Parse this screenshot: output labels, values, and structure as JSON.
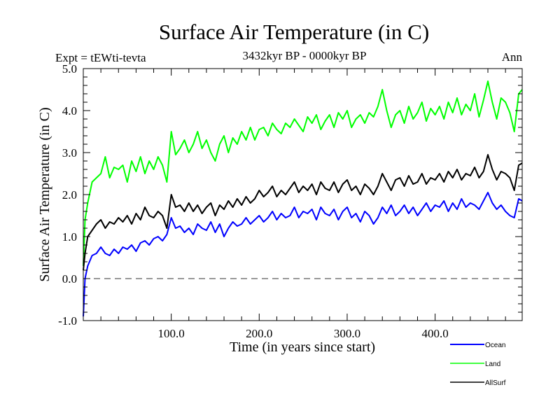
{
  "chart_data": {
    "type": "line",
    "title": "Surface Air Temperature (in C)",
    "subtitle": "3432kyr BP - 0000kyr BP",
    "left_annotation": "Expt = tEWti-tevta",
    "right_annotation": "Ann",
    "xlabel": "Time (in years since start)",
    "ylabel": "Surface Air Temperature (in C)",
    "xlim": [
      0,
      499
    ],
    "ylim": [
      -1.0,
      5.0
    ],
    "x_ticks": [
      100,
      200,
      300,
      400
    ],
    "x_tick_labels": [
      "100.0",
      "200.0",
      "300.0",
      "400.0"
    ],
    "y_ticks": [
      -1,
      0,
      1,
      2,
      3,
      4,
      5
    ],
    "y_tick_labels": [
      "-1.0",
      "0.0",
      "1.0",
      "2.0",
      "3.0",
      "4.0",
      "5.0"
    ],
    "reference_line": {
      "y": 0.0,
      "style": "dashed",
      "color": "#000000"
    },
    "grid": false,
    "legend_position": "bottom-right-outside",
    "x": [
      0,
      2,
      5,
      10,
      15,
      20,
      25,
      30,
      35,
      40,
      45,
      50,
      55,
      60,
      65,
      70,
      75,
      80,
      85,
      90,
      95,
      100,
      105,
      110,
      115,
      120,
      125,
      130,
      135,
      140,
      145,
      150,
      155,
      160,
      165,
      170,
      175,
      180,
      185,
      190,
      195,
      200,
      205,
      210,
      215,
      220,
      225,
      230,
      235,
      240,
      245,
      250,
      255,
      260,
      265,
      270,
      275,
      280,
      285,
      290,
      295,
      300,
      305,
      310,
      315,
      320,
      325,
      330,
      335,
      340,
      345,
      350,
      355,
      360,
      365,
      370,
      375,
      380,
      385,
      390,
      395,
      400,
      405,
      410,
      415,
      420,
      425,
      430,
      435,
      440,
      445,
      450,
      455,
      460,
      465,
      470,
      475,
      480,
      485,
      490,
      495,
      499
    ],
    "series": [
      {
        "name": "Ocean",
        "color": "#0000ff",
        "values": [
          -0.9,
          0.0,
          0.3,
          0.55,
          0.6,
          0.75,
          0.6,
          0.55,
          0.7,
          0.6,
          0.75,
          0.7,
          0.8,
          0.65,
          0.85,
          0.9,
          0.8,
          0.95,
          1.0,
          0.9,
          1.05,
          1.45,
          1.2,
          1.25,
          1.1,
          1.2,
          1.05,
          1.3,
          1.2,
          1.15,
          1.35,
          1.1,
          1.3,
          1.0,
          1.2,
          1.35,
          1.25,
          1.3,
          1.45,
          1.3,
          1.4,
          1.5,
          1.35,
          1.45,
          1.6,
          1.4,
          1.55,
          1.45,
          1.5,
          1.7,
          1.45,
          1.6,
          1.55,
          1.65,
          1.4,
          1.7,
          1.55,
          1.5,
          1.65,
          1.4,
          1.6,
          1.7,
          1.45,
          1.55,
          1.35,
          1.6,
          1.5,
          1.3,
          1.45,
          1.7,
          1.55,
          1.75,
          1.5,
          1.6,
          1.75,
          1.55,
          1.7,
          1.5,
          1.65,
          1.8,
          1.6,
          1.75,
          1.7,
          1.85,
          1.6,
          1.8,
          1.65,
          1.9,
          1.7,
          1.8,
          1.75,
          1.65,
          1.85,
          2.05,
          1.8,
          1.65,
          1.75,
          1.6,
          1.5,
          1.45,
          1.9,
          1.85
        ]
      },
      {
        "name": "Land",
        "color": "#00ff00",
        "values": [
          0.3,
          1.4,
          1.8,
          2.3,
          2.4,
          2.5,
          2.9,
          2.4,
          2.65,
          2.6,
          2.7,
          2.3,
          2.8,
          2.55,
          2.9,
          2.5,
          2.8,
          2.6,
          2.9,
          2.7,
          2.3,
          3.5,
          2.95,
          3.1,
          3.3,
          3.0,
          3.2,
          3.5,
          3.1,
          3.3,
          3.0,
          2.8,
          3.2,
          3.4,
          3.0,
          3.35,
          3.2,
          3.5,
          3.3,
          3.6,
          3.3,
          3.55,
          3.6,
          3.4,
          3.7,
          3.55,
          3.45,
          3.7,
          3.6,
          3.8,
          3.65,
          3.5,
          3.85,
          3.7,
          3.9,
          3.55,
          3.75,
          3.9,
          3.6,
          3.95,
          3.8,
          4.0,
          3.6,
          3.8,
          3.9,
          3.7,
          3.95,
          3.85,
          4.1,
          4.5,
          4.0,
          3.6,
          3.9,
          4.0,
          3.7,
          4.1,
          3.8,
          3.95,
          4.2,
          3.75,
          4.05,
          3.9,
          4.1,
          3.8,
          4.2,
          3.95,
          4.3,
          3.9,
          4.15,
          4.0,
          4.4,
          3.85,
          4.25,
          4.7,
          4.2,
          3.8,
          4.3,
          4.2,
          3.95,
          3.5,
          4.4,
          4.5
        ]
      },
      {
        "name": "AllSurf",
        "color": "#000000",
        "values": [
          0.2,
          0.6,
          1.0,
          1.15,
          1.3,
          1.4,
          1.2,
          1.35,
          1.3,
          1.45,
          1.35,
          1.5,
          1.3,
          1.55,
          1.4,
          1.7,
          1.5,
          1.45,
          1.6,
          1.5,
          1.2,
          2.0,
          1.7,
          1.75,
          1.6,
          1.8,
          1.6,
          1.75,
          1.55,
          1.7,
          1.8,
          1.5,
          1.75,
          1.65,
          1.85,
          1.7,
          1.9,
          1.75,
          1.95,
          1.8,
          1.9,
          2.1,
          1.95,
          2.05,
          2.2,
          1.95,
          2.1,
          2.0,
          2.15,
          2.3,
          2.05,
          2.2,
          2.1,
          2.25,
          2.0,
          2.3,
          2.15,
          2.1,
          2.3,
          2.05,
          2.25,
          2.35,
          2.1,
          2.2,
          2.0,
          2.25,
          2.15,
          2.0,
          2.2,
          2.5,
          2.3,
          2.1,
          2.35,
          2.4,
          2.2,
          2.45,
          2.25,
          2.3,
          2.5,
          2.25,
          2.4,
          2.35,
          2.5,
          2.3,
          2.55,
          2.4,
          2.6,
          2.35,
          2.5,
          2.45,
          2.65,
          2.4,
          2.55,
          2.95,
          2.6,
          2.35,
          2.55,
          2.5,
          2.4,
          2.1,
          2.7,
          2.75
        ]
      }
    ]
  }
}
